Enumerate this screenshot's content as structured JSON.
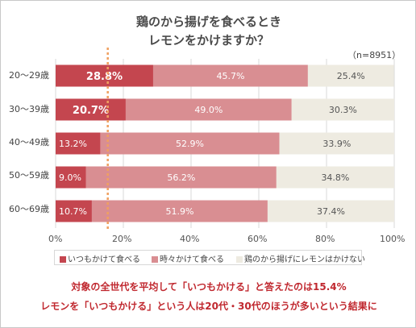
{
  "title_line1": "鶏のから揚げを食べるとき",
  "title_line2": "レモンをかけますか？",
  "sample_note": "（n=8951）",
  "footnote_line1": "対象の全世代を平均して「いつもかける」と答えたのは15.4%",
  "footnote_line2": "レモンを「いつもかける」という人は20代・30代のほうが多いという結果に",
  "colors": {
    "always": "#c4464f",
    "sometimes": "#d98e92",
    "never": "#eeebe1",
    "avg_line": "#f0a060"
  },
  "chart_data": {
    "type": "bar",
    "orientation": "horizontal",
    "stacked": true,
    "categories": [
      "20～29歳",
      "30～39歳",
      "40～49歳",
      "50～59歳",
      "60～69歳"
    ],
    "series": [
      {
        "name": "いつもかけて食べる",
        "values": [
          28.8,
          20.7,
          13.2,
          9.0,
          10.7
        ],
        "labels": [
          "28.8%",
          "20.7%",
          "13.2%",
          "9.0%",
          "10.7%"
        ]
      },
      {
        "name": "時々かけて食べる",
        "values": [
          45.7,
          49.0,
          52.9,
          56.2,
          51.9
        ],
        "labels": [
          "45.7%",
          "49.0%",
          "52.9%",
          "56.2%",
          "51.9%"
        ]
      },
      {
        "name": "鶏のから揚げにレモンはかけない",
        "values": [
          25.4,
          30.3,
          33.9,
          34.8,
          37.4
        ],
        "labels": [
          "25.4%",
          "30.3%",
          "33.9%",
          "34.8%",
          "37.4%"
        ]
      }
    ],
    "xlim": [
      0,
      100
    ],
    "x_ticks": [
      "0%",
      "20%",
      "40%",
      "60%",
      "80%",
      "100%"
    ],
    "average_line_value": 15.4,
    "legend_position": "bottom",
    "grid": "vertical"
  }
}
